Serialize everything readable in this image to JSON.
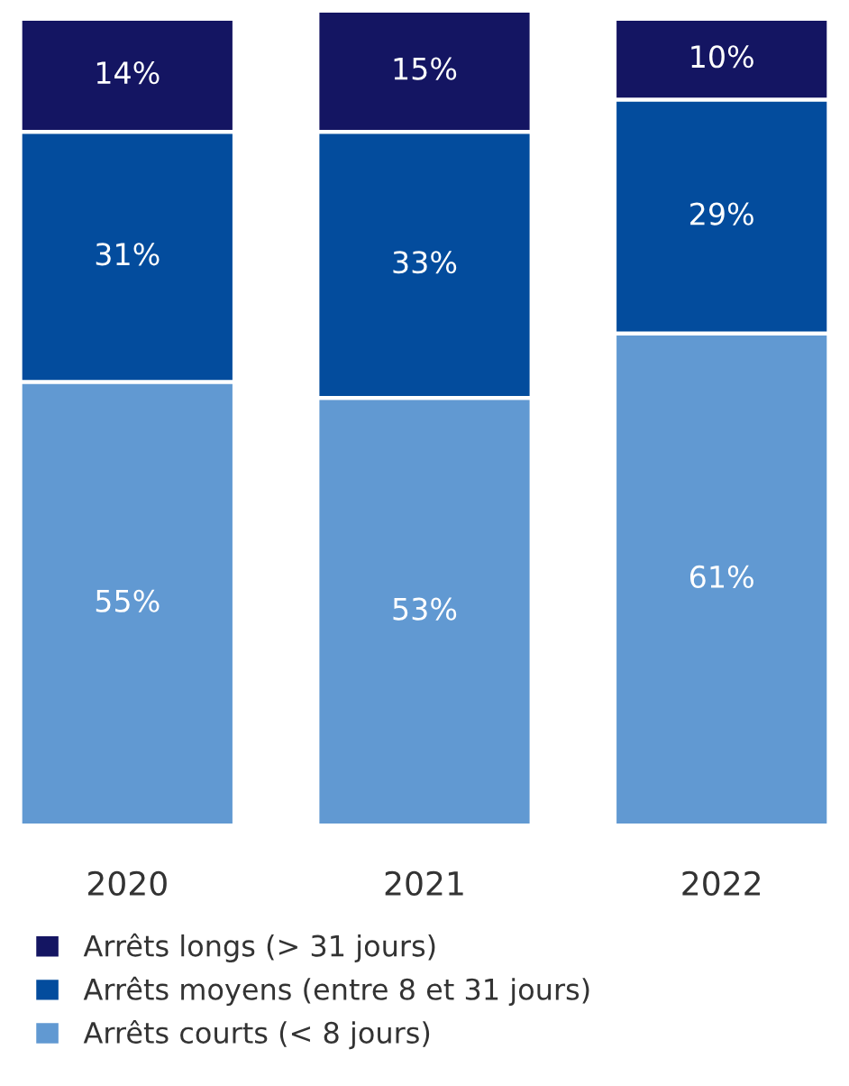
{
  "chart_data": {
    "type": "bar",
    "stacked": true,
    "categories": [
      "2020",
      "2021",
      "2022"
    ],
    "series": [
      {
        "name": "Arrêts courts (< 8 jours)",
        "color": "#6199d2",
        "values": [
          55,
          53,
          61
        ],
        "value_labels": [
          "55%",
          "53%",
          "61%"
        ]
      },
      {
        "name": "Arrêts moyens (entre 8 et 31 jours)",
        "color": "#034c9d",
        "values": [
          31,
          33,
          29
        ],
        "value_labels": [
          "31%",
          "33%",
          "29%"
        ]
      },
      {
        "name": "Arrêts longs (> 31 jours)",
        "color": "#141562",
        "values": [
          14,
          15,
          10
        ],
        "value_labels": [
          "14%",
          "15%",
          "10%"
        ]
      }
    ],
    "legend": "bottom",
    "grid": false
  }
}
